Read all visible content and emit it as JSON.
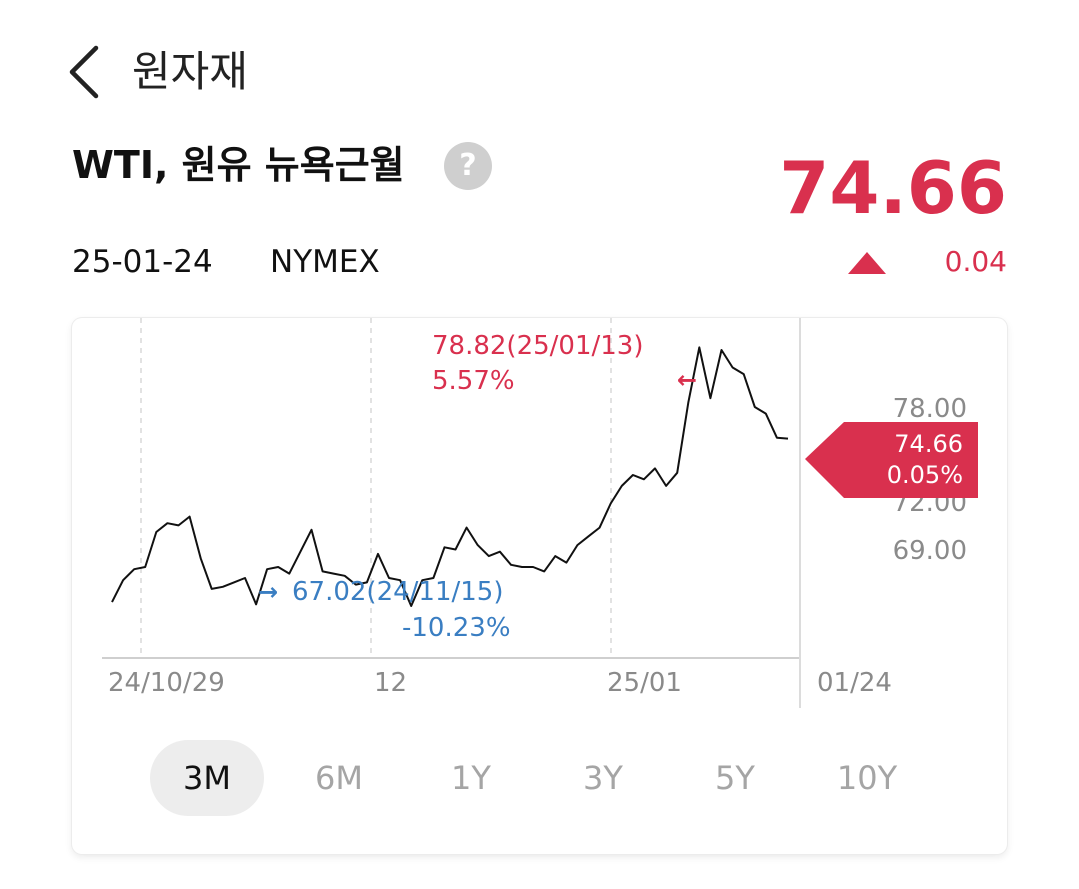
{
  "header": {
    "title": "원자재",
    "back_icon": "chevron-left-icon"
  },
  "instrument": {
    "name": "WTI, 원유 뉴욕근월",
    "help_icon": "question-circle-icon",
    "help_glyph": "?",
    "price": "74.66",
    "date": "25-01-24",
    "exchange": "NYMEX",
    "change": "0.04",
    "change_direction": "up",
    "up_color": "#d9304e"
  },
  "chart_data": {
    "type": "line",
    "x_tick_labels": [
      "24/10/29",
      "12",
      "25/01",
      "01/24"
    ],
    "y_tick_labels": [
      "78.00",
      "72.00",
      "69.00"
    ],
    "y_ticks": [
      78,
      72,
      69
    ],
    "ylim": [
      64.65,
      80.16
    ],
    "grid": true,
    "series": [
      {
        "values": [
          67.2,
          68.2,
          68.7,
          68.8,
          70.4,
          70.8,
          70.7,
          71.1,
          69.2,
          67.8,
          67.9,
          68.1,
          68.3,
          67.1,
          68.7,
          68.8,
          68.5,
          69.5,
          70.5,
          68.6,
          68.5,
          68.4,
          68.0,
          68.1,
          69.4,
          68.3,
          68.2,
          67.02,
          68.2,
          68.3,
          69.7,
          69.6,
          70.6,
          69.8,
          69.3,
          69.5,
          68.9,
          68.8,
          68.8,
          68.6,
          69.3,
          69.0,
          69.8,
          70.2,
          70.6,
          71.7,
          72.5,
          73.0,
          72.8,
          73.3,
          72.5,
          73.1,
          76.3,
          78.82,
          76.5,
          78.7,
          77.9,
          77.6,
          76.1,
          75.8,
          74.7,
          74.66
        ],
        "color": "#111111"
      }
    ],
    "annotations": {
      "high": {
        "label": "78.82(25/01/13)",
        "pct": "5.57%",
        "arrow": "←",
        "color": "#d9304e"
      },
      "low": {
        "label": "67.02(24/11/15)",
        "pct": "-10.23%",
        "arrow": "→",
        "color": "#3a7ec2"
      },
      "current": {
        "value": "74.66",
        "pct": "0.05%",
        "color": "#d9304e"
      }
    }
  },
  "range_tabs": [
    {
      "label": "3M",
      "active": true
    },
    {
      "label": "6M",
      "active": false
    },
    {
      "label": "1Y",
      "active": false
    },
    {
      "label": "3Y",
      "active": false
    },
    {
      "label": "5Y",
      "active": false
    },
    {
      "label": "10Y",
      "active": false
    }
  ]
}
